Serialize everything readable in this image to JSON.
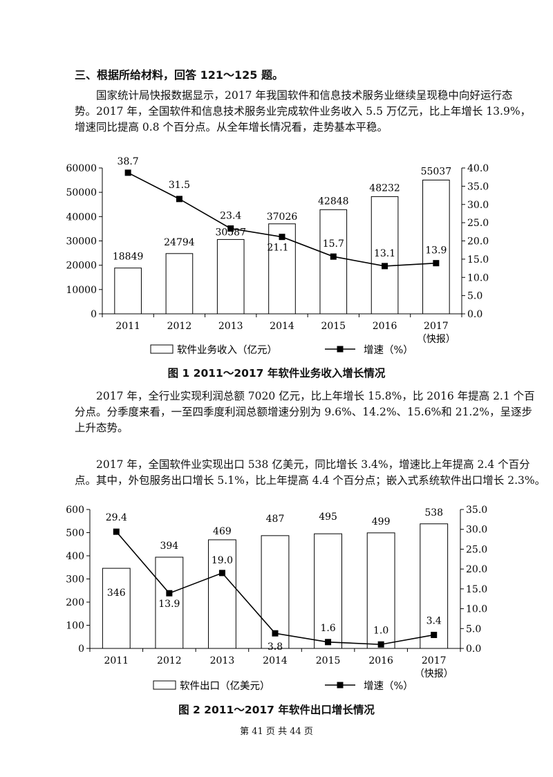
{
  "section_heading": "三、根据所给材料，回答 121～125 题。",
  "intro_lines": [
    "国家统计局快报数据显示，2017 年我国软件和信息技术服务业继续呈现稳中向好运行态",
    "势。2017 年，全国软件和信息技术服务业完成软件业务收入 5.5 万亿元，比上年增长 13.9%，",
    "增速同比提高 0.8 个百分点。从全年增长情况看，走势基本平稳。"
  ],
  "para2_lines": [
    "2017 年，全行业实现利润总额 7020 亿元，比上年增长 15.8%，比 2016 年提高 2.1 个百",
    "分点。分季度来看，一至四季度利润总额增速分别为 9.6%、14.2%、15.6%和 21.2%，呈逐步",
    "上升态势。"
  ],
  "para3_lines": [
    "2017 年，全国软件业实现出口 538 亿美元，同比增长 3.4%，增速比上年提高 2.4 个百分",
    "点。其中，外包服务出口增长 5.1%，比上年提高 4.4 个百分点；嵌入式系统软件出口增长 2.3%。"
  ],
  "footer": "第 41 页   共 44 页",
  "colors": {
    "bar_fill": "#ffffff",
    "stroke": "#000000",
    "line": "#000000"
  },
  "chart_data": [
    {
      "type": "bar",
      "title": "图 1   2011～2017 年软件业务收入增长情况",
      "categories": [
        "2011",
        "2012",
        "2013",
        "2014",
        "2015",
        "2016",
        "2017"
      ],
      "category_sublabels": [
        "",
        "",
        "",
        "",
        "",
        "",
        "（快报）"
      ],
      "series": [
        {
          "name": "软件业务收入（亿元）",
          "kind": "bar",
          "axis": "left",
          "values": [
            18849,
            24794,
            30587,
            37026,
            42848,
            48232,
            55037
          ],
          "labels": [
            "18849",
            "24794",
            "30587",
            "37026",
            "42848",
            "48232",
            "55037"
          ]
        },
        {
          "name": "增速（%）",
          "kind": "line",
          "axis": "right",
          "values": [
            38.7,
            31.5,
            23.4,
            21.1,
            15.7,
            13.1,
            13.9
          ],
          "labels": [
            "38.7",
            "31.5",
            "23.4",
            "21.1",
            "15.7",
            "13.1",
            "13.9"
          ]
        }
      ],
      "ylim_left": [
        0,
        60000
      ],
      "yticks_left": [
        "0",
        "10000",
        "20000",
        "30000",
        "40000",
        "50000",
        "60000"
      ],
      "ylim_right": [
        0,
        40
      ],
      "yticks_right": [
        "0.0",
        "5.0",
        "10.0",
        "15.0",
        "20.0",
        "25.0",
        "30.0",
        "35.0",
        "40.0"
      ],
      "legend_position": "bottom"
    },
    {
      "type": "bar",
      "title": "图 2   2011～2017 年软件出口增长情况",
      "categories": [
        "2011",
        "2012",
        "2013",
        "2014",
        "2015",
        "2016",
        "2017"
      ],
      "category_sublabels": [
        "",
        "",
        "",
        "",
        "",
        "",
        "（快报）"
      ],
      "series": [
        {
          "name": "软件出口（亿美元）",
          "kind": "bar",
          "axis": "left",
          "values": [
            346,
            394,
            469,
            487,
            495,
            499,
            538
          ],
          "labels": [
            "346",
            "394",
            "469",
            "487",
            "495",
            "499",
            "538"
          ]
        },
        {
          "name": "增速（%）",
          "kind": "line",
          "axis": "right",
          "values": [
            29.4,
            13.9,
            19.0,
            3.8,
            1.6,
            1.0,
            3.4
          ],
          "labels": [
            "29.4",
            "13.9",
            "19.0",
            "3.8",
            "1.6",
            "1.0",
            "3.4"
          ]
        }
      ],
      "ylim_left": [
        0,
        600
      ],
      "yticks_left": [
        "0",
        "100",
        "200",
        "300",
        "400",
        "500",
        "600"
      ],
      "ylim_right": [
        0,
        35
      ],
      "yticks_right": [
        "0.0",
        "5.0",
        "10.0",
        "15.0",
        "20.0",
        "25.0",
        "30.0",
        "35.0"
      ],
      "legend_position": "bottom"
    }
  ]
}
